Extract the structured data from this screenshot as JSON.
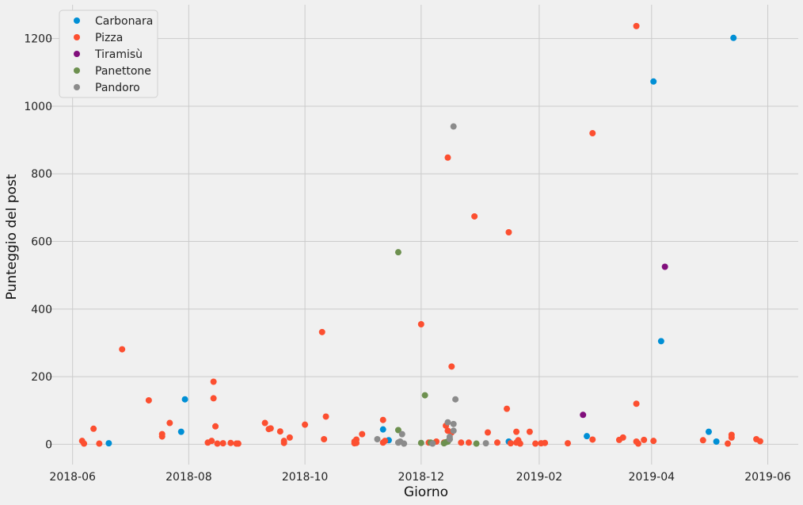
{
  "chart_data": {
    "type": "scatter",
    "title": "",
    "xlabel": "Giorno",
    "ylabel": "Punteggio del post",
    "x_type": "date",
    "xlim": [
      "2018-05-18",
      "2019-06-17"
    ],
    "ylim": [
      -60,
      1300
    ],
    "x_ticks": [
      "2018-06-01",
      "2018-08-01",
      "2018-10-01",
      "2018-12-01",
      "2019-02-01",
      "2019-04-01",
      "2019-06-01"
    ],
    "x_tick_labels": [
      "2018-06",
      "2018-08",
      "2018-10",
      "2018-12",
      "2019-02",
      "2019-04",
      "2019-06"
    ],
    "y_ticks": [
      0,
      200,
      400,
      600,
      800,
      1000,
      1200
    ],
    "y_tick_labels": [
      "0",
      "200",
      "400",
      "600",
      "800",
      "1000",
      "1200"
    ],
    "grid": true,
    "legend_position": "top-left",
    "series": [
      {
        "name": "Carbonara",
        "color": "#008fd5",
        "points": [
          [
            "2018-06-20",
            3
          ],
          [
            "2018-07-28",
            37
          ],
          [
            "2018-07-30",
            133
          ],
          [
            "2018-11-11",
            44
          ],
          [
            "2018-11-14",
            12
          ],
          [
            "2019-01-16",
            8
          ],
          [
            "2019-01-21",
            7
          ],
          [
            "2019-02-26",
            24
          ],
          [
            "2019-04-02",
            1073
          ],
          [
            "2019-04-06",
            305
          ],
          [
            "2019-05-01",
            37
          ],
          [
            "2019-05-05",
            8
          ],
          [
            "2019-05-14",
            1202
          ]
        ]
      },
      {
        "name": "Pizza",
        "color": "#fc4f30",
        "points": [
          [
            "2018-06-06",
            10
          ],
          [
            "2018-06-07",
            2
          ],
          [
            "2018-06-12",
            46
          ],
          [
            "2018-06-15",
            2
          ],
          [
            "2018-06-27",
            281
          ],
          [
            "2018-07-11",
            130
          ],
          [
            "2018-07-18",
            30
          ],
          [
            "2018-07-18",
            23
          ],
          [
            "2018-07-22",
            63
          ],
          [
            "2018-08-11",
            5
          ],
          [
            "2018-08-13",
            10
          ],
          [
            "2018-08-14",
            185
          ],
          [
            "2018-08-14",
            136
          ],
          [
            "2018-08-15",
            53
          ],
          [
            "2018-08-16",
            2
          ],
          [
            "2018-08-19",
            3
          ],
          [
            "2018-08-23",
            4
          ],
          [
            "2018-08-26",
            2
          ],
          [
            "2018-08-27",
            2
          ],
          [
            "2018-09-10",
            63
          ],
          [
            "2018-09-12",
            45
          ],
          [
            "2018-09-13",
            47
          ],
          [
            "2018-09-18",
            38
          ],
          [
            "2018-09-20",
            10
          ],
          [
            "2018-09-20",
            4
          ],
          [
            "2018-09-23",
            20
          ],
          [
            "2018-10-01",
            58
          ],
          [
            "2018-10-10",
            332
          ],
          [
            "2018-10-11",
            15
          ],
          [
            "2018-10-12",
            82
          ],
          [
            "2018-10-27",
            3
          ],
          [
            "2018-10-27",
            8
          ],
          [
            "2018-10-28",
            14
          ],
          [
            "2018-10-28",
            4
          ],
          [
            "2018-10-31",
            30
          ],
          [
            "2018-11-11",
            72
          ],
          [
            "2018-11-11",
            5
          ],
          [
            "2018-11-12",
            10
          ],
          [
            "2018-12-01",
            355
          ],
          [
            "2018-12-05",
            5
          ],
          [
            "2018-12-09",
            8
          ],
          [
            "2018-12-13",
            5
          ],
          [
            "2018-12-14",
            55
          ],
          [
            "2018-12-15",
            848
          ],
          [
            "2018-12-15",
            40
          ],
          [
            "2018-12-17",
            230
          ],
          [
            "2018-12-17",
            35
          ],
          [
            "2018-12-22",
            5
          ],
          [
            "2018-12-26",
            5
          ],
          [
            "2018-12-29",
            674
          ],
          [
            "2019-01-05",
            35
          ],
          [
            "2019-01-10",
            5
          ],
          [
            "2019-01-15",
            105
          ],
          [
            "2019-01-16",
            627
          ],
          [
            "2019-01-17",
            3
          ],
          [
            "2019-01-20",
            37
          ],
          [
            "2019-01-20",
            5
          ],
          [
            "2019-01-21",
            12
          ],
          [
            "2019-01-22",
            2
          ],
          [
            "2019-01-27",
            37
          ],
          [
            "2019-01-30",
            2
          ],
          [
            "2019-02-02",
            3
          ],
          [
            "2019-02-04",
            4
          ],
          [
            "2019-02-16",
            3
          ],
          [
            "2019-03-01",
            920
          ],
          [
            "2019-03-01",
            14
          ],
          [
            "2019-03-15",
            13
          ],
          [
            "2019-03-17",
            20
          ],
          [
            "2019-03-24",
            1237
          ],
          [
            "2019-03-24",
            120
          ],
          [
            "2019-03-24",
            8
          ],
          [
            "2019-03-25",
            2
          ],
          [
            "2019-03-28",
            13
          ],
          [
            "2019-04-02",
            10
          ],
          [
            "2019-04-28",
            12
          ],
          [
            "2019-05-11",
            2
          ],
          [
            "2019-05-13",
            20
          ],
          [
            "2019-05-13",
            28
          ],
          [
            "2019-05-26",
            15
          ],
          [
            "2019-05-28",
            9
          ]
        ]
      },
      {
        "name": "Tiramisù",
        "color": "#810f7c",
        "points": [
          [
            "2019-02-24",
            87
          ],
          [
            "2019-04-08",
            525
          ]
        ]
      },
      {
        "name": "Panettone",
        "color": "#6d904f",
        "points": [
          [
            "2018-11-19",
            42
          ],
          [
            "2018-11-19",
            568
          ],
          [
            "2018-12-01",
            4
          ],
          [
            "2018-12-03",
            145
          ],
          [
            "2018-12-06",
            5
          ],
          [
            "2018-12-07",
            3
          ],
          [
            "2018-12-13",
            3
          ],
          [
            "2018-12-14",
            6
          ],
          [
            "2018-12-15",
            8
          ],
          [
            "2018-12-16",
            15
          ],
          [
            "2018-12-30",
            2
          ]
        ]
      },
      {
        "name": "Pandoro",
        "color": "#8b8b8b",
        "points": [
          [
            "2018-11-08",
            15
          ],
          [
            "2018-11-19",
            5
          ],
          [
            "2018-11-20",
            8
          ],
          [
            "2018-11-21",
            30
          ],
          [
            "2018-11-22",
            2
          ],
          [
            "2018-12-07",
            2
          ],
          [
            "2018-12-15",
            65
          ],
          [
            "2018-12-16",
            22
          ],
          [
            "2018-12-16",
            15
          ],
          [
            "2018-12-18",
            940
          ],
          [
            "2018-12-18",
            60
          ],
          [
            "2018-12-18",
            40
          ],
          [
            "2018-12-19",
            133
          ],
          [
            "2019-01-04",
            3
          ]
        ]
      }
    ]
  }
}
